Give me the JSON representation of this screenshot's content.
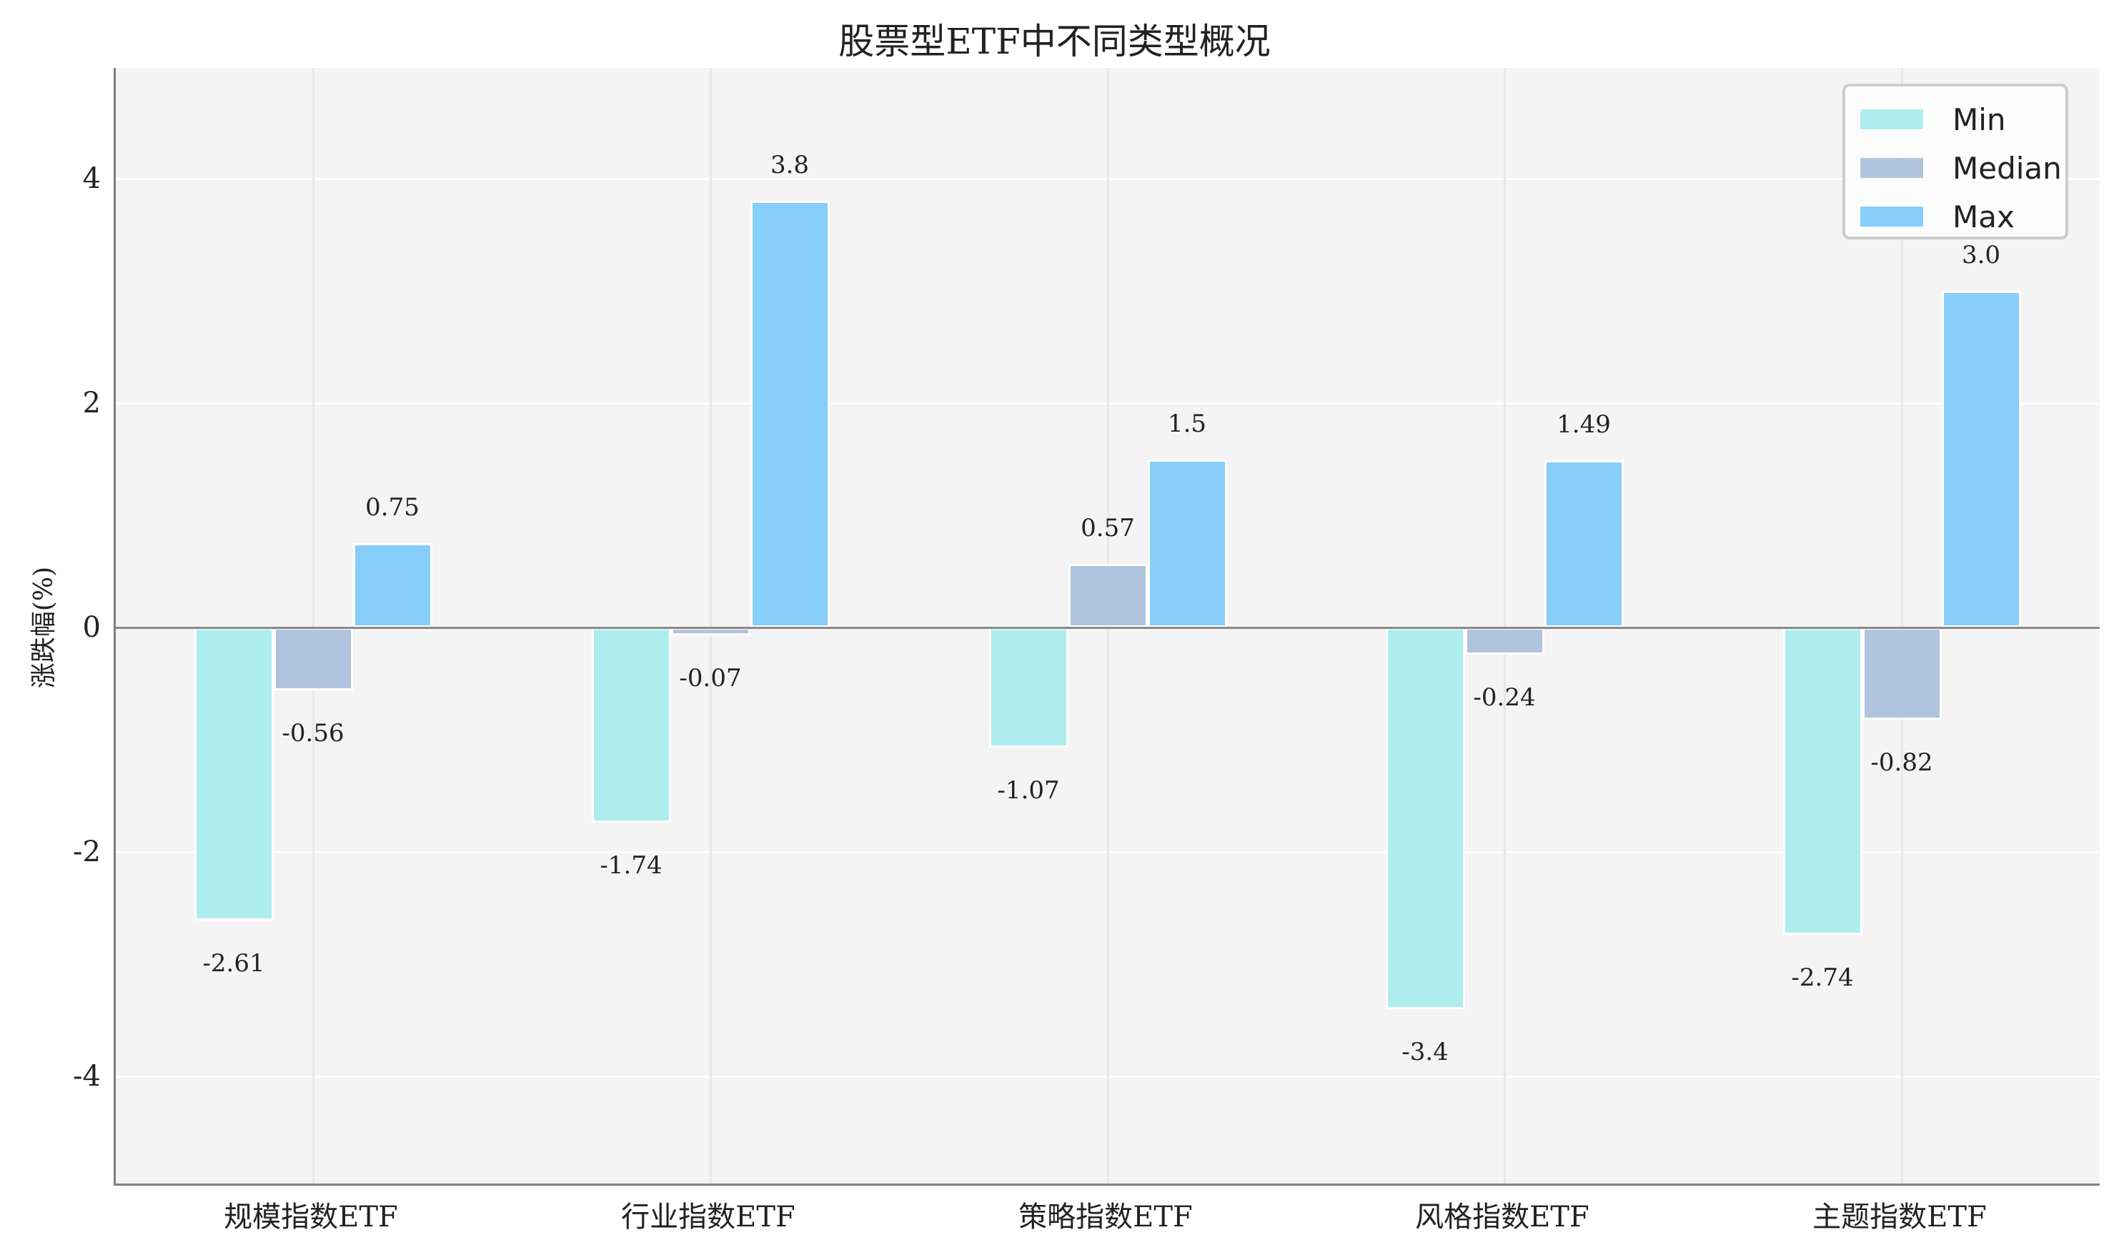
{
  "title": "股票型ETF中不同类型概况",
  "chart_data": {
    "type": "bar",
    "title": "股票型ETF中不同类型概况",
    "xlabel": "",
    "ylabel": "涨跌幅(%)",
    "ylim": [
      -5,
      5
    ],
    "yticks": [
      -4,
      -2,
      0,
      2,
      4
    ],
    "grid": true,
    "legend_position": "upper right",
    "categories": [
      "规模指数ETF",
      "行业指数ETF",
      "策略指数ETF",
      "风格指数ETF",
      "主题指数ETF"
    ],
    "series": [
      {
        "name": "Min",
        "color": "#afeeee",
        "values": [
          -2.61,
          -1.74,
          -1.07,
          -3.4,
          -2.74
        ],
        "labels": [
          "-2.61",
          "-1.74",
          "-1.07",
          "-3.4",
          "-2.74"
        ]
      },
      {
        "name": "Median",
        "color": "#b0c4de",
        "values": [
          -0.56,
          -0.07,
          0.57,
          -0.24,
          -0.82
        ],
        "labels": [
          "-0.56",
          "-0.07",
          "0.57",
          "-0.24",
          "-0.82"
        ]
      },
      {
        "name": "Max",
        "color": "#87cefa",
        "values": [
          0.75,
          3.8,
          1.5,
          1.49,
          3.0
        ],
        "labels": [
          "0.75",
          "3.8",
          "1.5",
          "1.49",
          "3.0"
        ]
      }
    ]
  }
}
